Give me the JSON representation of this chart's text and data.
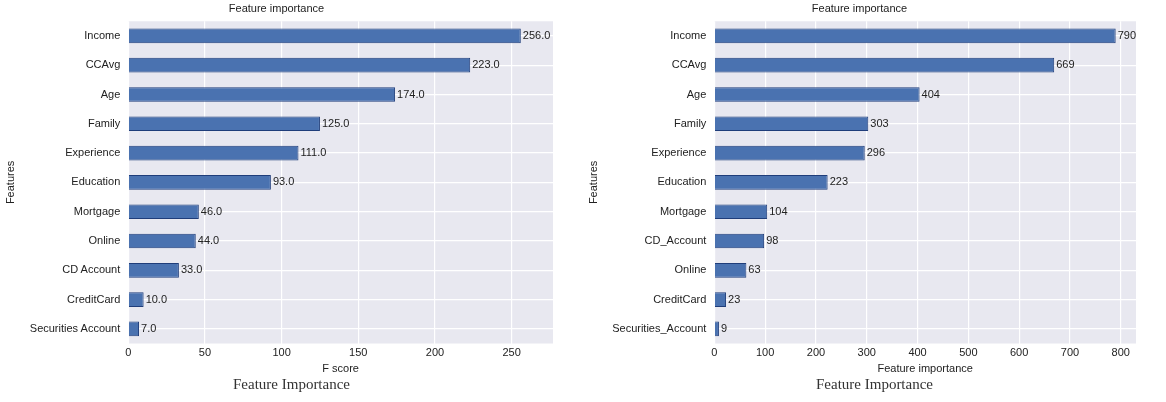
{
  "chart_data": [
    {
      "type": "bar",
      "orientation": "horizontal",
      "title": "Feature importance",
      "xlabel": "F score",
      "ylabel": "Features",
      "categories": [
        "Income",
        "CCAvg",
        "Age",
        "Family",
        "Experience",
        "Education",
        "Mortgage",
        "Online",
        "CD Account",
        "CreditCard",
        "Securities Account"
      ],
      "values": [
        256,
        223,
        174,
        125,
        111,
        93,
        46,
        44,
        33,
        10,
        7
      ],
      "value_labels": [
        "256.0",
        "223.0",
        "174.0",
        "125.0",
        "111.0",
        "93.0",
        "46.0",
        "44.0",
        "33.0",
        "10.0",
        "7.0"
      ],
      "color": "#4a72b0",
      "xlim": [
        0,
        277
      ],
      "xticks": [
        0,
        50,
        100,
        150,
        200,
        250
      ],
      "grid": true,
      "annotations": [
        "Feature Importance"
      ]
    },
    {
      "type": "bar",
      "orientation": "horizontal",
      "title": "Feature importance",
      "xlabel": "Feature importance",
      "ylabel": "Features",
      "categories": [
        "Income",
        "CCAvg",
        "Age",
        "Family",
        "Experience",
        "Education",
        "Mortgage",
        "CD_Account",
        "Online",
        "CreditCard",
        "Securities_Account"
      ],
      "values": [
        790,
        669,
        404,
        303,
        296,
        223,
        104,
        98,
        63,
        23,
        9
      ],
      "value_labels": [
        "790",
        "669",
        "404",
        "303",
        "296",
        "223",
        "104",
        "98",
        "63",
        "23",
        "9"
      ],
      "color": "#4a72b0",
      "xlim": [
        0,
        830
      ],
      "xticks": [
        0,
        100,
        200,
        300,
        400,
        500,
        600,
        700,
        800
      ],
      "grid": true,
      "annotations": [
        "Feature Importance"
      ]
    }
  ]
}
